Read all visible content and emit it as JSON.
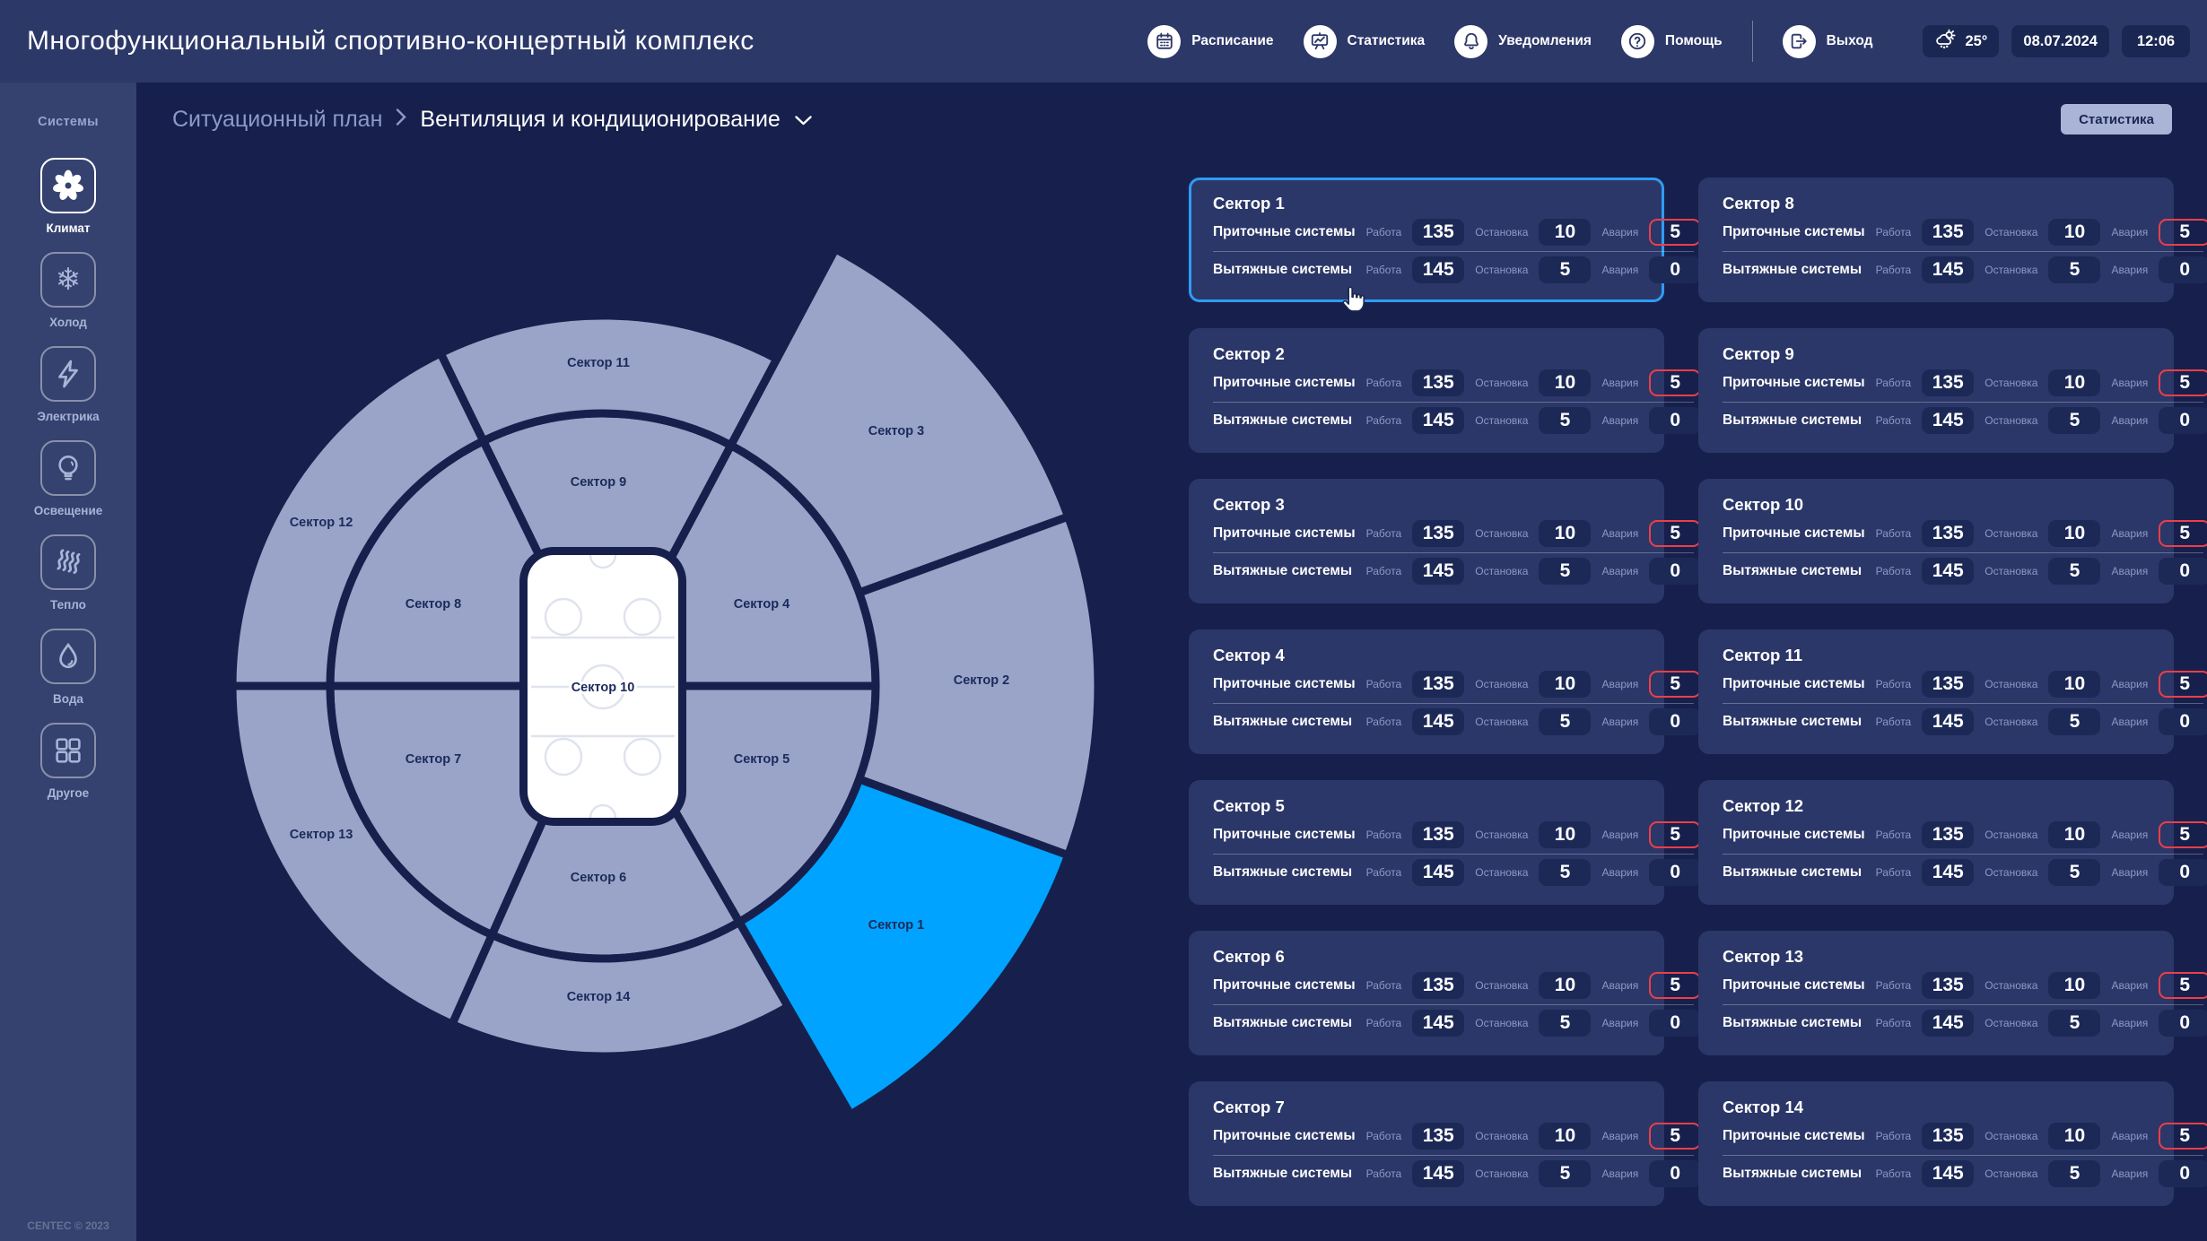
{
  "header": {
    "title": "Многофункциональный спортивно-концертный комплекс",
    "nav": [
      {
        "id": "schedule",
        "icon": "calendar-icon",
        "label": "Расписание"
      },
      {
        "id": "statistics",
        "icon": "chart-icon",
        "label": "Статистика"
      },
      {
        "id": "notifications",
        "icon": "bell-icon",
        "label": "Уведомления"
      },
      {
        "id": "help",
        "icon": "question-icon",
        "label": "Помощь"
      }
    ],
    "exit": {
      "id": "exit",
      "icon": "exit-icon",
      "label": "Выход"
    },
    "weather": {
      "temp": "25°"
    },
    "date": "08.07.2024",
    "time": "12:06"
  },
  "sidebar": {
    "title": "Системы",
    "items": [
      {
        "id": "climate",
        "icon": "fan-icon",
        "label": "Климат",
        "active": true
      },
      {
        "id": "cold",
        "icon": "snowflake-icon",
        "label": "Холод",
        "active": false
      },
      {
        "id": "electricity",
        "icon": "lightning-icon",
        "label": "Электрика",
        "active": false
      },
      {
        "id": "lighting",
        "icon": "bulb-icon",
        "label": "Освещение",
        "active": false
      },
      {
        "id": "heat",
        "icon": "heat-icon",
        "label": "Тепло",
        "active": false
      },
      {
        "id": "water",
        "icon": "water-icon",
        "label": "Вода",
        "active": false
      },
      {
        "id": "other",
        "icon": "grid-icon",
        "label": "Другое",
        "active": false
      }
    ],
    "copyright": "CENTEC © 2023"
  },
  "breadcrumb": {
    "parent": "Ситуационный план",
    "current": "Вентиляция и кондиционирование"
  },
  "stats_button": "Статистика",
  "map": {
    "center_label": "Сектор 10",
    "colors": {
      "fill": "#9AA4C8",
      "highlight": "#00A3FF",
      "stroke": "#17204C",
      "label": "#1B2A5C"
    },
    "sectors": [
      {
        "label": "Сектор 4",
        "ring": "inner",
        "a": [
          0,
          62
        ],
        "lp": [
          849,
          673
        ],
        "highlighted": false
      },
      {
        "label": "Сектор 9",
        "ring": "inner",
        "a": [
          62,
          116
        ],
        "lp": [
          667,
          537
        ],
        "highlighted": false
      },
      {
        "label": "Сектор 8",
        "ring": "inner",
        "a": [
          116,
          180
        ],
        "lp": [
          483,
          673
        ],
        "highlighted": false
      },
      {
        "label": "Сектор 7",
        "ring": "inner",
        "a": [
          180,
          246
        ],
        "lp": [
          483,
          846
        ],
        "highlighted": false
      },
      {
        "label": "Сектор 6",
        "ring": "inner",
        "a": [
          246,
          300
        ],
        "lp": [
          667,
          978
        ],
        "highlighted": false
      },
      {
        "label": "Сектор 5",
        "ring": "inner",
        "a": [
          300,
          360
        ],
        "lp": [
          849,
          846
        ],
        "highlighted": false
      },
      {
        "label": "Сектор 11",
        "ring": "outer",
        "a": [
          62,
          116
        ],
        "lp": [
          667,
          404
        ],
        "highlighted": false
      },
      {
        "label": "Сектор 12",
        "ring": "outer",
        "a": [
          116,
          180
        ],
        "lp": [
          358,
          582
        ],
        "highlighted": false
      },
      {
        "label": "Сектор 13",
        "ring": "outer",
        "a": [
          180,
          246
        ],
        "lp": [
          358,
          930
        ],
        "highlighted": false
      },
      {
        "label": "Сектор 14",
        "ring": "outer",
        "a": [
          246,
          300
        ],
        "lp": [
          667,
          1111
        ],
        "highlighted": false
      },
      {
        "label": "Сектор 3",
        "ring": "extended",
        "a": [
          20,
          62
        ],
        "lp": [
          999,
          480
        ],
        "highlighted": false
      },
      {
        "label": "Сектор 2",
        "ring": "extended",
        "a": [
          -20,
          20
        ],
        "lp": [
          1094,
          758
        ],
        "highlighted": false
      },
      {
        "label": "Сектор 1",
        "ring": "extended",
        "a": [
          300,
          340
        ],
        "lp": [
          999,
          1031
        ],
        "highlighted": true
      }
    ]
  },
  "panel": {
    "row_labels": [
      "Приточные системы",
      "Вытяжные системы"
    ],
    "metric_labels": [
      "Работа",
      "Остановка",
      "Авария"
    ],
    "cards": [
      {
        "title": "Сектор 1",
        "selected": true,
        "supply": {
          "work": 135,
          "stop": 10,
          "alarm": 5
        },
        "exhaust": {
          "work": 145,
          "stop": 5,
          "alarm": 0
        }
      },
      {
        "title": "Сектор 2",
        "selected": false,
        "supply": {
          "work": 135,
          "stop": 10,
          "alarm": 5
        },
        "exhaust": {
          "work": 145,
          "stop": 5,
          "alarm": 0
        }
      },
      {
        "title": "Сектор 3",
        "selected": false,
        "supply": {
          "work": 135,
          "stop": 10,
          "alarm": 5
        },
        "exhaust": {
          "work": 145,
          "stop": 5,
          "alarm": 0
        }
      },
      {
        "title": "Сектор 4",
        "selected": false,
        "supply": {
          "work": 135,
          "stop": 10,
          "alarm": 5
        },
        "exhaust": {
          "work": 145,
          "stop": 5,
          "alarm": 0
        }
      },
      {
        "title": "Сектор 5",
        "selected": false,
        "supply": {
          "work": 135,
          "stop": 10,
          "alarm": 5
        },
        "exhaust": {
          "work": 145,
          "stop": 5,
          "alarm": 0
        }
      },
      {
        "title": "Сектор 6",
        "selected": false,
        "supply": {
          "work": 135,
          "stop": 10,
          "alarm": 5
        },
        "exhaust": {
          "work": 145,
          "stop": 5,
          "alarm": 0
        }
      },
      {
        "title": "Сектор 7",
        "selected": false,
        "supply": {
          "work": 135,
          "stop": 10,
          "alarm": 5
        },
        "exhaust": {
          "work": 145,
          "stop": 5,
          "alarm": 0
        }
      },
      {
        "title": "Сектор 8",
        "selected": false,
        "supply": {
          "work": 135,
          "stop": 10,
          "alarm": 5
        },
        "exhaust": {
          "work": 145,
          "stop": 5,
          "alarm": 0
        }
      },
      {
        "title": "Сектор 9",
        "selected": false,
        "supply": {
          "work": 135,
          "stop": 10,
          "alarm": 5
        },
        "exhaust": {
          "work": 145,
          "stop": 5,
          "alarm": 0
        }
      },
      {
        "title": "Сектор 10",
        "selected": false,
        "supply": {
          "work": 135,
          "stop": 10,
          "alarm": 5
        },
        "exhaust": {
          "work": 145,
          "stop": 5,
          "alarm": 0
        }
      },
      {
        "title": "Сектор 11",
        "selected": false,
        "supply": {
          "work": 135,
          "stop": 10,
          "alarm": 5
        },
        "exhaust": {
          "work": 145,
          "stop": 5,
          "alarm": 0
        }
      },
      {
        "title": "Сектор 12",
        "selected": false,
        "supply": {
          "work": 135,
          "stop": 10,
          "alarm": 5
        },
        "exhaust": {
          "work": 145,
          "stop": 5,
          "alarm": 0
        }
      },
      {
        "title": "Сектор 13",
        "selected": false,
        "supply": {
          "work": 135,
          "stop": 10,
          "alarm": 5
        },
        "exhaust": {
          "work": 145,
          "stop": 5,
          "alarm": 0
        }
      },
      {
        "title": "Сектор 14",
        "selected": false,
        "supply": {
          "work": 135,
          "stop": 10,
          "alarm": 5
        },
        "exhaust": {
          "work": 145,
          "stop": 5,
          "alarm": 0
        }
      }
    ]
  }
}
